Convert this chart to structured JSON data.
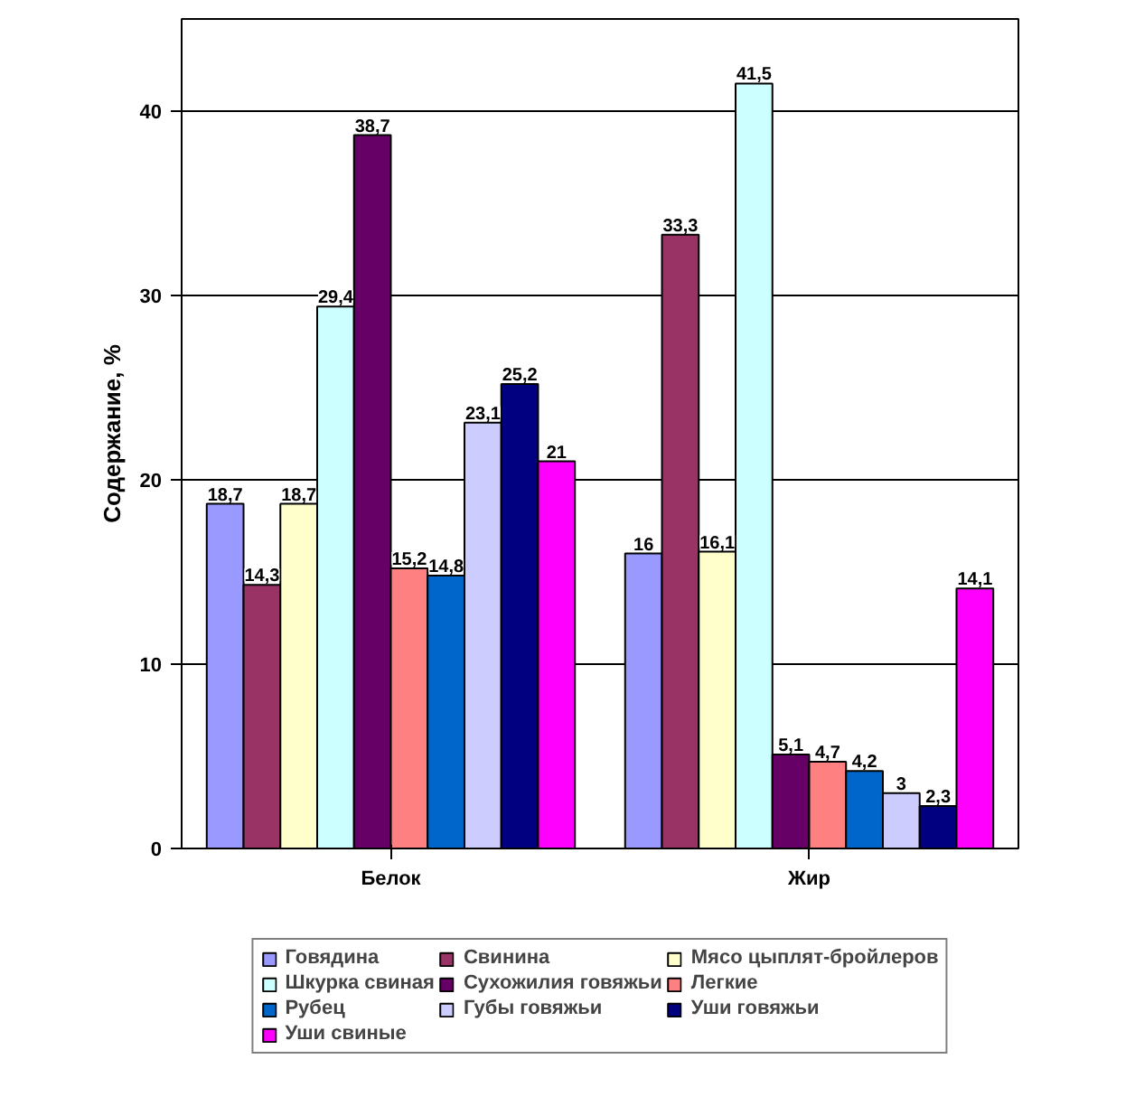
{
  "chart_data": {
    "type": "bar",
    "ylabel": "Содержание, %",
    "categories": [
      "Белок",
      "Жир"
    ],
    "series": [
      {
        "name": "Говядина",
        "color": "#9999ff",
        "values": [
          18.7,
          16
        ],
        "value_labels": [
          "18,7",
          "16"
        ]
      },
      {
        "name": "Свинина",
        "color": "#993366",
        "values": [
          14.3,
          33.3
        ],
        "value_labels": [
          "14,3",
          "33,3"
        ]
      },
      {
        "name": "Мясо цыплят-бройлеров",
        "color": "#ffffcc",
        "values": [
          18.7,
          16.1
        ],
        "value_labels": [
          "18,7",
          "16,1"
        ]
      },
      {
        "name": "Шкурка свиная",
        "color": "#ccffff",
        "values": [
          29.4,
          41.5
        ],
        "value_labels": [
          "29,4",
          "41,5"
        ]
      },
      {
        "name": "Сухожилия говяжьи",
        "color": "#660066",
        "values": [
          38.7,
          5.1
        ],
        "value_labels": [
          "38,7",
          "5,1"
        ]
      },
      {
        "name": "Легкие",
        "color": "#ff8080",
        "values": [
          15.2,
          4.7
        ],
        "value_labels": [
          "15,2",
          "4,7"
        ]
      },
      {
        "name": "Рубец",
        "color": "#0066cc",
        "values": [
          14.8,
          4.2
        ],
        "value_labels": [
          "14,8",
          "4,2"
        ]
      },
      {
        "name": "Губы говяжьи",
        "color": "#ccccff",
        "values": [
          23.1,
          3
        ],
        "value_labels": [
          "23,1",
          "3"
        ]
      },
      {
        "name": "Уши говяжьи",
        "color": "#000080",
        "values": [
          25.2,
          2.3
        ],
        "value_labels": [
          "25,2",
          "2,3"
        ]
      },
      {
        "name": "Уши свиные",
        "color": "#ff00ff",
        "values": [
          21,
          14.1
        ],
        "value_labels": [
          "21",
          "14,1"
        ]
      }
    ],
    "ylim": [
      0,
      45
    ],
    "yticks": [
      0,
      10,
      20,
      30,
      40
    ],
    "grid": "y",
    "legend": "bottom"
  }
}
